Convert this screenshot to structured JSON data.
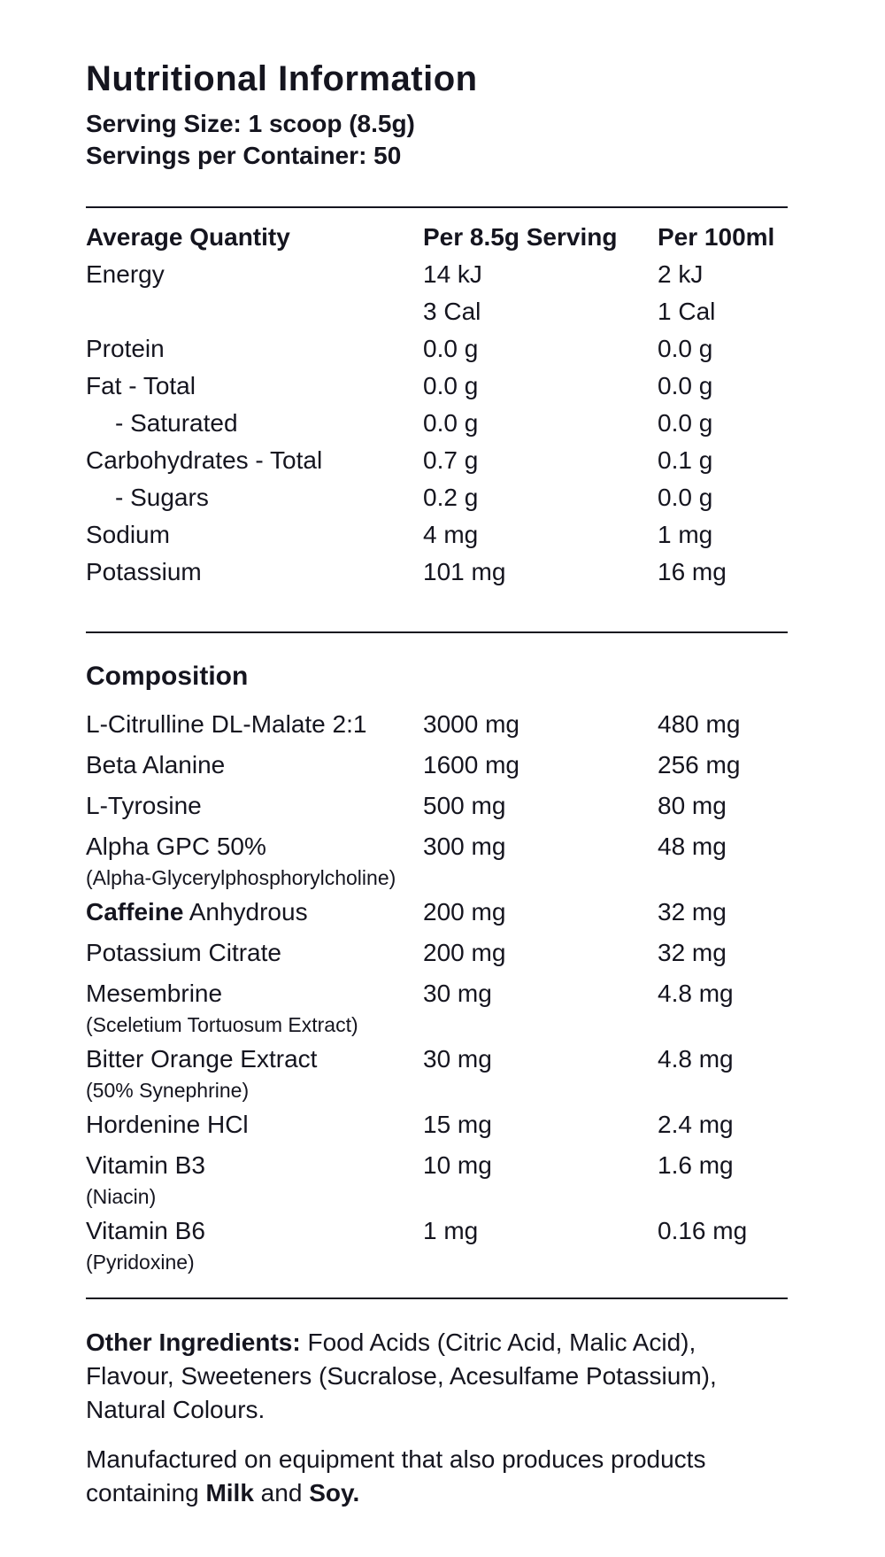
{
  "title": "Nutritional Information",
  "serving": {
    "size": "Serving Size: 1 scoop (8.5g)",
    "per_container": "Servings per Container: 50"
  },
  "nutrition_table": {
    "headers": {
      "quantity": "Average Quantity",
      "per_serving": "Per 8.5g Serving",
      "per_100ml": "Per 100ml"
    },
    "rows": [
      {
        "label": "Energy",
        "per_serving": "14 kJ",
        "per_100ml": "2 kJ"
      },
      {
        "label": "",
        "per_serving": "3 Cal",
        "per_100ml": "1 Cal"
      },
      {
        "label": "Protein",
        "per_serving": "0.0 g",
        "per_100ml": "0.0 g"
      },
      {
        "label": "Fat - Total",
        "per_serving": "0.0 g",
        "per_100ml": "0.0 g"
      },
      {
        "label": "- Saturated",
        "per_serving": "0.0 g",
        "per_100ml": "0.0 g"
      },
      {
        "label": "Carbohydrates - Total",
        "per_serving": "0.7 g",
        "per_100ml": "0.1 g"
      },
      {
        "label": "- Sugars",
        "per_serving": "0.2 g",
        "per_100ml": "0.0 g"
      },
      {
        "label": "Sodium",
        "per_serving": "4 mg",
        "per_100ml": "1 mg"
      },
      {
        "label": "Potassium",
        "per_serving": "101 mg",
        "per_100ml": "16 mg"
      }
    ]
  },
  "composition": {
    "heading": "Composition",
    "rows": [
      {
        "label": "L-Citrulline DL-Malate 2:1",
        "per_serving": "3000 mg",
        "per_100ml": "480 mg"
      },
      {
        "label": "Beta Alanine",
        "per_serving": "1600 mg",
        "per_100ml": "256 mg"
      },
      {
        "label": "L-Tyrosine",
        "per_serving": "500 mg",
        "per_100ml": "80 mg"
      },
      {
        "label": "Alpha GPC 50%",
        "sub_label": "(Alpha-Glycerylphosphorylcholine)",
        "per_serving": "300 mg",
        "per_100ml": "48 mg"
      },
      {
        "label_bold": "Caffeine",
        "label": " Anhydrous",
        "per_serving": "200 mg",
        "per_100ml": "32 mg"
      },
      {
        "label": "Potassium Citrate",
        "per_serving": "200 mg",
        "per_100ml": "32 mg"
      },
      {
        "label": "Mesembrine",
        "sub_label": "(Sceletium Tortuosum Extract)",
        "per_serving": "30 mg",
        "per_100ml": "4.8 mg"
      },
      {
        "label": "Bitter Orange Extract",
        "sub_label": "(50% Synephrine)",
        "per_serving": "30 mg",
        "per_100ml": "4.8 mg"
      },
      {
        "label": "Hordenine HCl",
        "per_serving": "15 mg",
        "per_100ml": "2.4 mg"
      },
      {
        "label": "Vitamin B3",
        "sub_label": "(Niacin)",
        "per_serving": "10 mg",
        "per_100ml": "1.6 mg"
      },
      {
        "label": "Vitamin B6",
        "sub_label": "(Pyridoxine)",
        "per_serving": "1 mg",
        "per_100ml": "0.16 mg"
      }
    ]
  },
  "other_ingredients": {
    "label": "Other Ingredients:",
    "text": " Food Acids (Citric Acid, Malic Acid), Flavour, Sweeteners (Sucralose, Acesulfame Potassium), Natural Colours."
  },
  "allergen_notice": {
    "text_start": "Manufactured on equipment that also produces products containing ",
    "allergen_1": "Milk",
    "text_middle": " and ",
    "allergen_2": "Soy."
  },
  "colors": {
    "text": "#15151f",
    "rule": "#15151f",
    "background": "#ffffff"
  }
}
